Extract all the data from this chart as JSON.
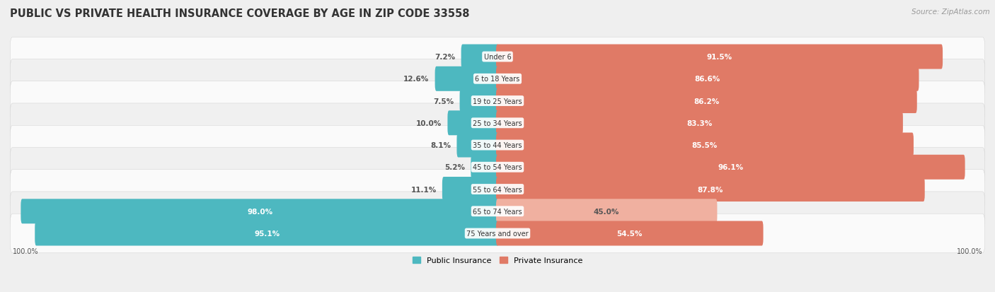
{
  "title": "PUBLIC VS PRIVATE HEALTH INSURANCE COVERAGE BY AGE IN ZIP CODE 33558",
  "source": "Source: ZipAtlas.com",
  "categories": [
    "Under 6",
    "6 to 18 Years",
    "19 to 25 Years",
    "25 to 34 Years",
    "35 to 44 Years",
    "45 to 54 Years",
    "55 to 64 Years",
    "65 to 74 Years",
    "75 Years and over"
  ],
  "public_values": [
    7.2,
    12.6,
    7.5,
    10.0,
    8.1,
    5.2,
    11.1,
    98.0,
    95.1
  ],
  "private_values": [
    91.5,
    86.6,
    86.2,
    83.3,
    85.5,
    96.1,
    87.8,
    45.0,
    54.5
  ],
  "public_color": "#4db8c0",
  "private_color_strong": "#e07a66",
  "private_color_light": "#f0b0a0",
  "bg_color": "#efefef",
  "row_bg_color": "#fafafa",
  "row_alt_bg": "#f0f0f0",
  "title_color": "#333333",
  "source_color": "#999999",
  "label_white": "#ffffff",
  "label_dark": "#555555",
  "max_value": 100.0,
  "title_fontsize": 10.5,
  "source_fontsize": 7.5,
  "bar_label_fontsize": 7.5,
  "category_fontsize": 7.0,
  "legend_fontsize": 8,
  "axis_label_fontsize": 7,
  "private_threshold": 50
}
